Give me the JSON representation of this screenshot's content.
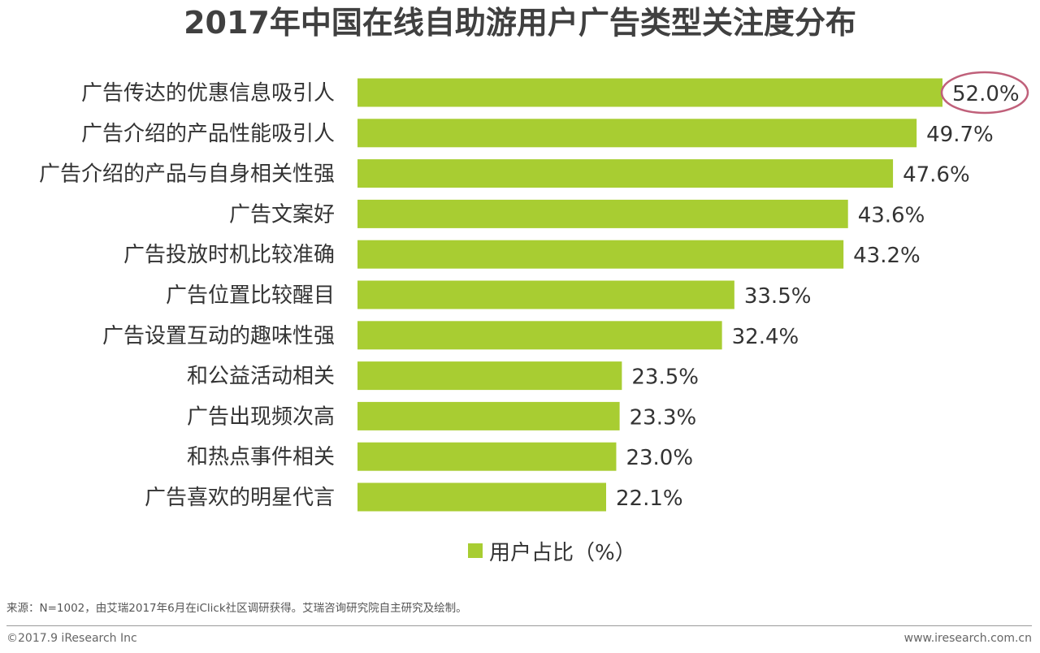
{
  "chart_data": {
    "type": "bar",
    "orientation": "horizontal",
    "title": "2017年中国在线自助游用户广告类型关注度分布",
    "categories": [
      "广告传达的优惠信息吸引人",
      "广告介绍的产品性能吸引人",
      "广告介绍的产品与自身相关性强",
      "广告文案好",
      "广告投放时机比较准确",
      "广告位置比较醒目",
      "广告设置互动的趣味性强",
      "和公益活动相关",
      "广告出现频次高",
      "和热点事件相关",
      "广告喜欢的明星代言"
    ],
    "values": [
      52.0,
      49.7,
      47.6,
      43.6,
      43.2,
      33.5,
      32.4,
      23.5,
      23.3,
      23.0,
      22.1
    ],
    "value_labels": [
      "52.0%",
      "49.7%",
      "47.6%",
      "43.6%",
      "43.2%",
      "33.5%",
      "32.4%",
      "23.5%",
      "23.3%",
      "23.0%",
      "22.1%"
    ],
    "series_name": "用户占比（%）",
    "xlim": [
      0,
      52.0
    ],
    "highlight_index": 0,
    "bar_color": "#a8cd32",
    "highlight_color": "#c0607a",
    "xlabel": "",
    "ylabel": ""
  },
  "legend": {
    "label": "用户占比（%）",
    "color": "#a8cd32"
  },
  "source": "来源：N=1002，由艾瑞2017年6月在iClick社区调研获得。艾瑞咨询研究院自主研究及绘制。",
  "footer": {
    "copyright": "©2017.9 iResearch Inc",
    "website": "www.iresearch.com.cn"
  }
}
